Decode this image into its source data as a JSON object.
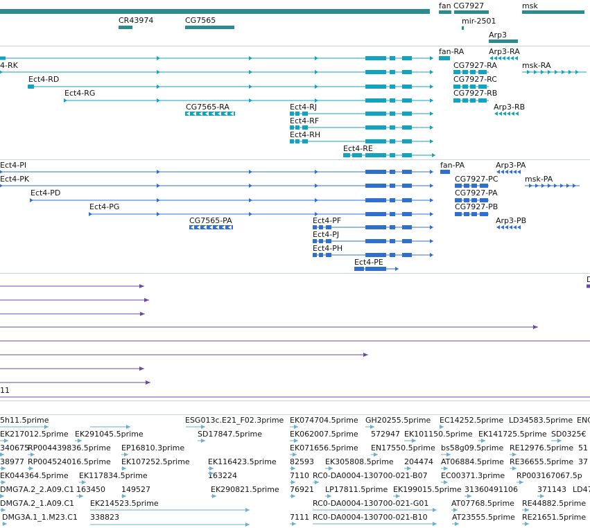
{
  "colors": {
    "gene": "#2e8b8b",
    "cdna_ra": "#12a3c0",
    "protein_pa": "#2f6fd0",
    "est": "#6a4aa3",
    "est_track2": "#6aaed6",
    "border": "#c8d3d8"
  },
  "tracks": [
    {
      "id": "gene-span",
      "color": "#2e8b8b",
      "features": [
        {
          "label": "fan"
        },
        {
          "label": "CG7927"
        },
        {
          "label": "msk"
        },
        {
          "label": "CR43974"
        },
        {
          "label": "CG7565"
        },
        {
          "label": "mir-2501"
        },
        {
          "label": "Arp3"
        }
      ]
    },
    {
      "id": "transcripts-r",
      "color": "#12a3c0",
      "features": [
        {
          "label": "4-RK"
        },
        {
          "label": "Ect4-RD"
        },
        {
          "label": "Ect4-RG"
        },
        {
          "label": "CG7565-RA"
        },
        {
          "label": "Ect4-RJ"
        },
        {
          "label": "Ect4-RF"
        },
        {
          "label": "Ect4-RH"
        },
        {
          "label": "Ect4-RE"
        },
        {
          "label": "fan-RA"
        },
        {
          "label": "Arp3-RA"
        },
        {
          "label": "CG7927-RA"
        },
        {
          "label": "msk-RA"
        },
        {
          "label": "CG7927-RC"
        },
        {
          "label": "CG7927-RB"
        },
        {
          "label": "Arp3-RB"
        }
      ]
    },
    {
      "id": "translations-p",
      "color": "#2f6fd0",
      "features": [
        {
          "label": "Ect4-PI"
        },
        {
          "label": "Ect4-PK"
        },
        {
          "label": "Ect4-PD"
        },
        {
          "label": "Ect4-PG"
        },
        {
          "label": "CG7565-PA"
        },
        {
          "label": "Ect4-PF"
        },
        {
          "label": "Ect4-PJ"
        },
        {
          "label": "Ect4-PH"
        },
        {
          "label": "Ect4-PE"
        },
        {
          "label": "fan-PA"
        },
        {
          "label": "Arp3-PA"
        },
        {
          "label": "CG7927-PC"
        },
        {
          "label": "msk-PA"
        },
        {
          "label": "CG7927-PA"
        },
        {
          "label": "CG7927-PB"
        },
        {
          "label": "Arp3-PB"
        }
      ]
    },
    {
      "id": "est-lines",
      "color": "#6a4aa3",
      "features": [
        {
          "label": "11"
        },
        {
          "label": "D"
        }
      ]
    },
    {
      "id": "est-clones",
      "color": "#6aaed6",
      "features": [
        {
          "label": "5h11.5prime"
        },
        {
          "label": "ESG013c.E21_F02.3prime"
        },
        {
          "label": "EK074704.5prime"
        },
        {
          "label": "GH20255.5prime"
        },
        {
          "label": "EC14252.5prime"
        },
        {
          "label": "LD34583.5prime"
        },
        {
          "label": "ENC"
        },
        {
          "label": "EK217012.5prime"
        },
        {
          "label": "EK291045.5prime"
        },
        {
          "label": "SD17847.5prime"
        },
        {
          "label": "EK062007.5prime"
        },
        {
          "label": "572947"
        },
        {
          "label": "EK101150.5prime"
        },
        {
          "label": "EK141725.5prime"
        },
        {
          "label": "SD0325€"
        },
        {
          "label": "340675"
        },
        {
          "label": "RP004439836.5prime"
        },
        {
          "label": "EP16810.3prime"
        },
        {
          "label": "EK071656.5prime"
        },
        {
          "label": "EN17550.5prime"
        },
        {
          "label": "bs58g09.5prime"
        },
        {
          "label": "RE12976.5prime"
        },
        {
          "label": "51"
        },
        {
          "label": "38977"
        },
        {
          "label": "RP004524016.5prime"
        },
        {
          "label": "EK107252.5prime"
        },
        {
          "label": "EK116423.5prime"
        },
        {
          "label": "82593"
        },
        {
          "label": "EK305808.5prime"
        },
        {
          "label": "204474"
        },
        {
          "label": "AT06884.5prime"
        },
        {
          "label": "RE36655.5prime"
        },
        {
          "label": "37"
        },
        {
          "label": "163224"
        },
        {
          "label": "EK044364.5prime"
        },
        {
          "label": "EK117834.5prime"
        },
        {
          "label": "7110"
        },
        {
          "label": "RC0-DA0004-130700-021-B07"
        },
        {
          "label": "EC00371.3prime"
        },
        {
          "label": "RP003167067.5p"
        },
        {
          "label": "DMG7A.2_2.A09.C1"
        },
        {
          "label": "163450"
        },
        {
          "label": "149527"
        },
        {
          "label": "EK290821.5prime"
        },
        {
          "label": "76921"
        },
        {
          "label": "LP17811.5prime"
        },
        {
          "label": "EK199015.5prime"
        },
        {
          "label": "31360491106"
        },
        {
          "label": "371143"
        },
        {
          "label": "LD47"
        },
        {
          "label": "DMG7A.2_1.A09.C1"
        },
        {
          "label": "EK214523.5prime"
        },
        {
          "label": "RC0-DA0004-130700-021-G01"
        },
        {
          "label": "AT07768.5prime"
        },
        {
          "label": "RE44882.5prime"
        },
        {
          "label": "DMG3A.1_1.M23.C1"
        },
        {
          "label": "338823"
        },
        {
          "label": "7111"
        },
        {
          "label": "RC0-DA0004-130700-021-B10"
        },
        {
          "label": "AT23555.5prime"
        },
        {
          "label": "RE21651.5prime"
        }
      ]
    }
  ]
}
